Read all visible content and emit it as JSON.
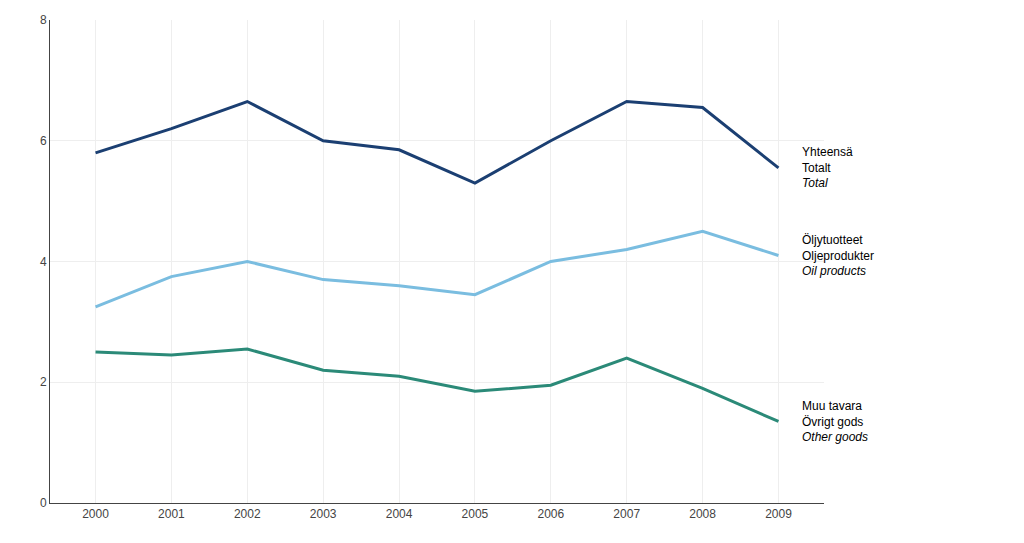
{
  "chart_data": {
    "type": "line",
    "x": [
      2000,
      2001,
      2002,
      2003,
      2004,
      2005,
      2006,
      2007,
      2008,
      2009
    ],
    "xlim": [
      1999.4,
      2009.6
    ],
    "xticks": [
      2000,
      2001,
      2002,
      2003,
      2004,
      2005,
      2006,
      2007,
      2008,
      2009
    ],
    "ylim": [
      0,
      8
    ],
    "yticks": [
      0,
      2,
      4,
      6,
      8
    ],
    "grid": true,
    "series": [
      {
        "name": "Yhteensä\nTotalt\nTotal",
        "color": "#1b3f72",
        "values": [
          5.8,
          6.2,
          6.65,
          6.0,
          5.85,
          5.3,
          6.0,
          6.65,
          6.55,
          5.55
        ]
      },
      {
        "name": "Öljytuotteet\nOljeprodukter\nOil products",
        "color": "#7abde0",
        "values": [
          3.25,
          3.75,
          4.0,
          3.7,
          3.6,
          3.45,
          4.0,
          4.2,
          4.5,
          4.1
        ]
      },
      {
        "name": "Muu tavara\nÖvrigt gods\nOther goods",
        "color": "#2b8a78",
        "values": [
          2.5,
          2.45,
          2.55,
          2.2,
          2.1,
          1.85,
          1.95,
          2.4,
          1.9,
          1.35
        ]
      }
    ]
  }
}
